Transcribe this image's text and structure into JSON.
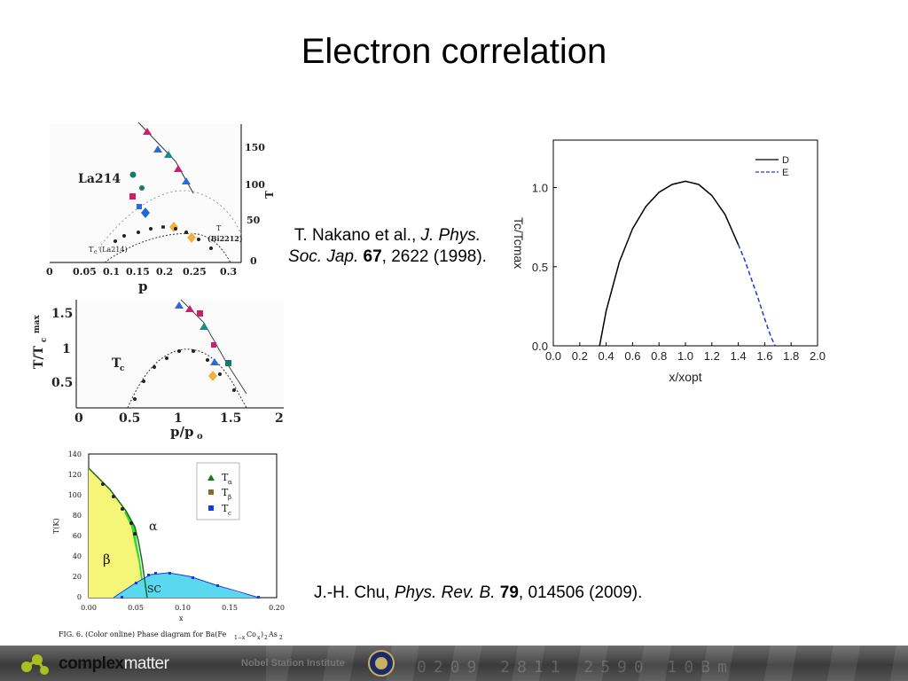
{
  "slide": {
    "title": "Electron correlation",
    "citation_nakano": {
      "authors": "T. Nakano et al.,",
      "journal": "J. Phys. Soc. Jap.",
      "volume": "67",
      "pages": "2622 (1998)."
    },
    "citation_chu": {
      "authors": "J.-H. Chu,",
      "journal": "Phys. Rev. B.",
      "volume": "79",
      "pages": "014506 (2009)."
    }
  },
  "footer": {
    "brand_bold": "complex",
    "brand_light": "matter",
    "institute": "Nobel Station Institute",
    "digits": "0209 2811 2590 10Bm"
  },
  "figure_la214": {
    "label": "La214",
    "curve_label_t": "T",
    "curve_label_bi": "(Bi2212)",
    "curve_label_tc": "T",
    "curve_label_tc_sub": "c",
    "curve_label_tc_paren": "(La214)",
    "xlabel": "p",
    "ylabel": "T",
    "y_ticks": [
      "0",
      "50",
      "100",
      "150"
    ],
    "x_ticks": [
      "0",
      "0.05",
      "0.1",
      "0.15",
      "0.2",
      "0.25",
      "0.3"
    ]
  },
  "figure_scaled": {
    "xlabel": "p/p",
    "xlabel_sub": "o",
    "ylabel": "T/T",
    "ylabel_sub": "c",
    "ylabel_sup": "max",
    "curve_label": "T",
    "curve_label_sub": "c",
    "y_ticks": [
      "0.5",
      "1",
      "1.5"
    ],
    "x_ticks": [
      "0",
      "0.5",
      "1",
      "1.5",
      "2"
    ]
  },
  "figure_phase": {
    "xlabel": "x",
    "ylabel": "T(K)",
    "caption": "FIG. 6. (Color online) Phase diagram for Ba(Fe",
    "caption_tail": "Co",
    "caption_end": ")",
    "caption_as": "As",
    "caption_sub_1": "1−x",
    "caption_sub_x": "x",
    "caption_sub_2": "2",
    "region_alpha": "α",
    "region_beta": "β",
    "region_sc": "SC",
    "legend": [
      {
        "label": "T",
        "sub": "α",
        "color": "#1a7a1a"
      },
      {
        "label": "T",
        "sub": "β",
        "color": "#8a6d2a"
      },
      {
        "label": "T",
        "sub": "c",
        "color": "#1a3ad8"
      }
    ],
    "y_ticks": [
      "0",
      "20",
      "40",
      "60",
      "80",
      "100",
      "120",
      "140"
    ],
    "x_ticks": [
      "0.00",
      "0.05",
      "0.10",
      "0.15",
      "0.20"
    ]
  },
  "chart_data": [
    {
      "type": "line",
      "title": "",
      "xlabel": "x/xopt",
      "ylabel": "Tc/Tcmax",
      "ylim": [
        0.0,
        1.3
      ],
      "xlim": [
        0.0,
        2.0
      ],
      "x_ticks": [
        "0.0",
        "0.2",
        "0.4",
        "0.6",
        "0.8",
        "1.0",
        "1.2",
        "1.4",
        "1.6",
        "1.8",
        "2.0"
      ],
      "y_ticks": [
        "0.0",
        "0.5",
        "1.0"
      ],
      "legend_position": "top-right",
      "series": [
        {
          "name": "D",
          "style": "solid",
          "color": "#000000",
          "x": [
            0.35,
            0.4,
            0.5,
            0.6,
            0.7,
            0.8,
            0.9,
            1.0,
            1.1,
            1.2,
            1.3,
            1.4
          ],
          "y": [
            0.0,
            0.22,
            0.53,
            0.74,
            0.88,
            0.97,
            1.02,
            1.04,
            1.02,
            0.95,
            0.83,
            0.64
          ]
        },
        {
          "name": "E",
          "style": "dashed",
          "color": "#1a3ad8",
          "x": [
            1.4,
            1.45,
            1.5,
            1.55,
            1.6,
            1.65,
            1.68
          ],
          "y": [
            0.64,
            0.54,
            0.42,
            0.3,
            0.17,
            0.05,
            0.0
          ]
        }
      ]
    }
  ]
}
